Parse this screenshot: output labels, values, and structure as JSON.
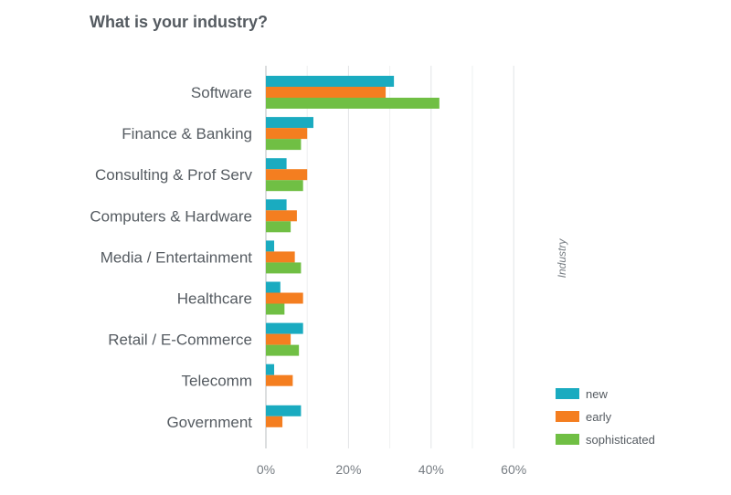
{
  "chart_data": {
    "type": "bar",
    "orientation": "horizontal",
    "title": "What is your industry?",
    "side_label": "Industry",
    "categories": [
      "Software",
      "Finance & Banking",
      "Consulting & Prof Serv",
      "Computers & Hardware",
      "Media / Entertainment",
      "Healthcare",
      "Retail / E-Commerce",
      "Telecomm",
      "Government"
    ],
    "series": [
      {
        "name": "new",
        "color": "#1aabc0",
        "values": [
          31,
          11.5,
          5,
          5,
          2,
          3.5,
          9,
          2,
          8.5
        ]
      },
      {
        "name": "early",
        "color": "#f47e20",
        "values": [
          29,
          10,
          10,
          7.5,
          7,
          9,
          6,
          6.5,
          4
        ]
      },
      {
        "name": "sophisticated",
        "color": "#70bf44",
        "values": [
          42,
          8.5,
          9,
          6,
          8.5,
          4.5,
          8,
          0,
          0
        ]
      }
    ],
    "xlim": [
      0,
      70
    ],
    "xticks": [
      0,
      20,
      40,
      60
    ],
    "xtick_labels": [
      "0%",
      "20%",
      "40%",
      "60%"
    ],
    "grid": true,
    "legend_position": "bottom-right"
  }
}
